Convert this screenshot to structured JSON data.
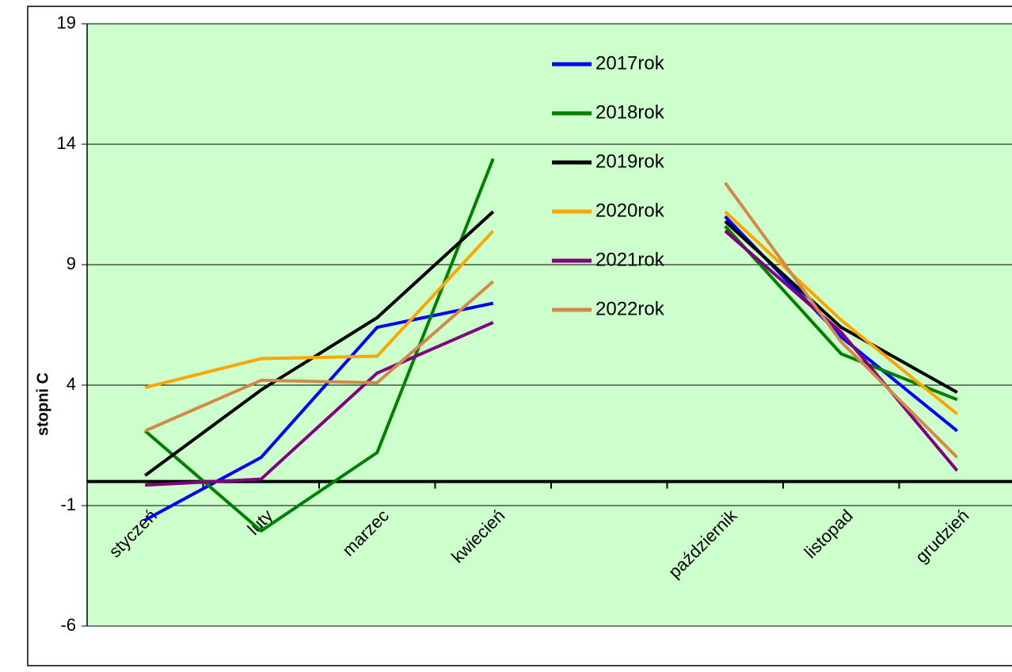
{
  "chart_data": {
    "type": "line",
    "y_label": "stopni C",
    "categories": [
      "styczeń",
      "luty",
      "marzec",
      "kwiecień",
      null,
      "październik",
      "listopad",
      "grudzień"
    ],
    "series": [
      {
        "name": "2017rok",
        "color": "#0000ff",
        "values": [
          -1.6,
          1.0,
          6.4,
          7.4,
          null,
          11.0,
          6.0,
          2.1
        ]
      },
      {
        "name": "2018rok",
        "color": "#008000",
        "values": [
          2.1,
          -2.05,
          1.2,
          13.4,
          null,
          10.6,
          5.3,
          3.4
        ]
      },
      {
        "name": "2019rok",
        "color": "#000000",
        "values": [
          0.25,
          3.8,
          6.8,
          11.2,
          null,
          10.8,
          6.4,
          3.7
        ]
      },
      {
        "name": "2020rok",
        "color": "#ffa500",
        "values": [
          3.9,
          5.1,
          5.2,
          10.4,
          null,
          11.2,
          6.7,
          2.8
        ]
      },
      {
        "name": "2021rok",
        "color": "#800080",
        "values": [
          -0.15,
          0.1,
          4.5,
          6.6,
          null,
          10.4,
          6.2,
          0.45
        ]
      },
      {
        "name": "2022rok",
        "color": "#d2894a",
        "values": [
          2.1,
          4.2,
          4.1,
          8.3,
          null,
          12.4,
          5.8,
          1.0
        ]
      }
    ],
    "ylim": [
      -6,
      19
    ],
    "yticks": [
      -6,
      -1,
      4,
      9,
      14,
      19
    ],
    "grid": true,
    "legend": "top"
  }
}
